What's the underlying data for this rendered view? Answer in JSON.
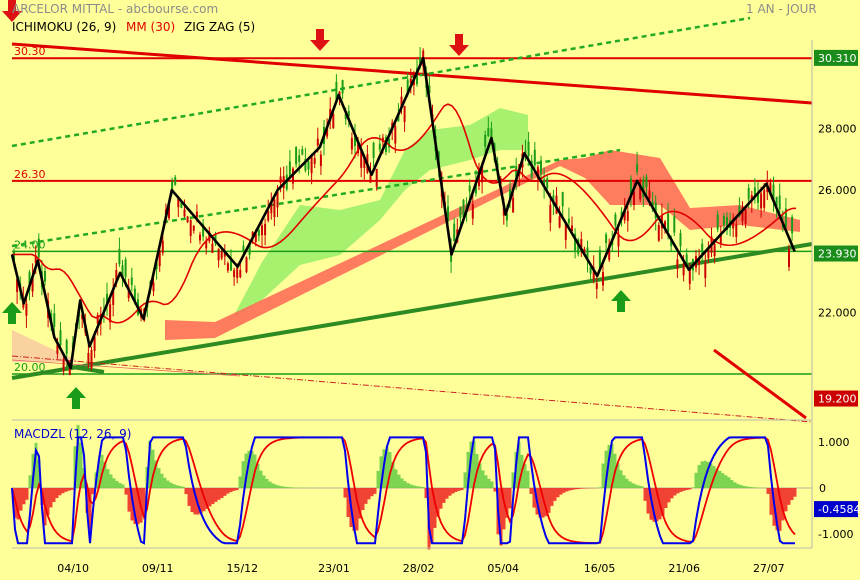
{
  "header": {
    "title": "ARCELOR MITTAL - abcbourse.com",
    "period": "1 AN - JOUR"
  },
  "indicators": {
    "ichimoku": "ICHIMOKU (26, 9)",
    "mm": "MM (30)",
    "zigzag": "ZIG ZAG (5)",
    "macd": "MACDZL (12, 26, 9)"
  },
  "colors": {
    "background": "#ffff99",
    "up_candle": "#1a9c1a",
    "down_candle": "#cc0000",
    "zigzag": "#000000",
    "mm30": "#e00000",
    "cloud_bull": "#99ee66",
    "cloud_bear": "#ff6655",
    "support_line": "#2e8b22",
    "resistance_line": "#e00000",
    "macd_line": "#0000ee",
    "signal_line": "#ee0000",
    "price_tag": "#1a8c1a",
    "stop_tag": "#cc0000",
    "macd_tag": "#0000cc"
  },
  "chart_data": [
    {
      "type": "candlestick",
      "title": "ARCELOR MITTAL - abcbourse.com",
      "ylim": [
        18.6,
        31.4
      ],
      "y_ticks": [
        "22.000",
        "24.000",
        "26.000",
        "28.000"
      ],
      "x_ticks": [
        "04/10",
        "09/11",
        "15/12",
        "23/01",
        "28/02",
        "05/04",
        "16/05",
        "21/06",
        "27/07"
      ],
      "last_price": "23.930",
      "high_tag": "30.310",
      "stop_tag": "19.200",
      "series": [
        {
          "name": "ZIG ZAG (5)",
          "points": [
            [
              "2022-09-08",
              23.9
            ],
            [
              "2022-09-13",
              22.3
            ],
            [
              "2022-09-19",
              23.7
            ],
            [
              "2022-09-26",
              21.2
            ],
            [
              "2022-10-03",
              20.2
            ],
            [
              "2022-10-07",
              22.4
            ],
            [
              "2022-10-11",
              20.9
            ],
            [
              "2022-10-24",
              23.3
            ],
            [
              "2022-11-03",
              21.8
            ],
            [
              "2022-11-15",
              26.0
            ],
            [
              "2022-12-13",
              23.5
            ],
            [
              "2022-12-30",
              26.0
            ],
            [
              "2023-01-17",
              27.4
            ],
            [
              "2023-01-25",
              29.1
            ],
            [
              "2023-02-08",
              26.5
            ],
            [
              "2023-03-02",
              30.3
            ],
            [
              "2023-03-14",
              23.9
            ],
            [
              "2023-03-31",
              27.7
            ],
            [
              "2023-04-06",
              25.2
            ],
            [
              "2023-04-14",
              27.2
            ],
            [
              "2023-05-15",
              23.2
            ],
            [
              "2023-06-01",
              26.3
            ],
            [
              "2023-06-23",
              23.4
            ],
            [
              "2023-07-26",
              26.2
            ],
            [
              "2023-08-07",
              24.0
            ]
          ]
        }
      ],
      "levels": [
        {
          "label": "30.30",
          "value": 30.3
        },
        {
          "label": "26.30",
          "value": 26.3
        },
        {
          "label": "24.00",
          "value": 24.0
        },
        {
          "label": "20.00",
          "value": 20.0
        }
      ]
    },
    {
      "type": "line",
      "title": "MACDZL (12, 26, 9)",
      "ylim": [
        -1.25,
        1.2
      ],
      "y_ticks": [
        "1.000",
        "0",
        "-1.000"
      ],
      "last_value": "-0.4584",
      "series": [
        {
          "name": "MACDZL (12, 26, 9)"
        }
      ]
    }
  ]
}
